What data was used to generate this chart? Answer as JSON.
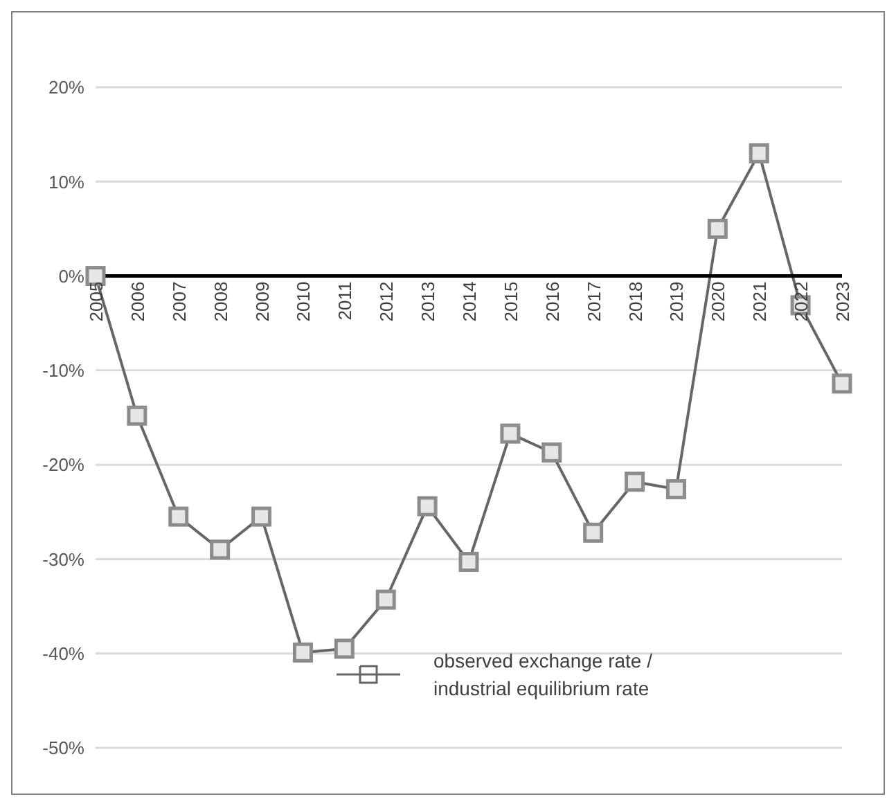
{
  "chart_data": {
    "type": "line",
    "categories": [
      "2005",
      "2006",
      "2007",
      "2008",
      "2009",
      "2010",
      "2011",
      "2012",
      "2013",
      "2014",
      "2015",
      "2016",
      "2017",
      "2018",
      "2019",
      "2020",
      "2021",
      "2022",
      "2023"
    ],
    "series": [
      {
        "name": "observed exchange rate / industrial equilibrium rate",
        "color": "#666666",
        "values": [
          0,
          -14.8,
          -25.5,
          -29.0,
          -25.5,
          -39.9,
          -39.5,
          -34.3,
          -24.4,
          -30.3,
          -16.7,
          -18.7,
          -27.2,
          -21.8,
          -22.6,
          5.0,
          13.0,
          -3.1,
          -11.4
        ]
      }
    ],
    "ylim": [
      -50,
      20
    ],
    "yticks": [
      {
        "value": -50,
        "label": "-50%"
      },
      {
        "value": -40,
        "label": "-40%"
      },
      {
        "value": -30,
        "label": "-30%"
      },
      {
        "value": -20,
        "label": "-20%"
      },
      {
        "value": -10,
        "label": "-10%"
      },
      {
        "value": 0,
        "label": "0%"
      },
      {
        "value": 10,
        "label": "10%"
      },
      {
        "value": 20,
        "label": "20%"
      }
    ],
    "grid": "y",
    "legend": "bottom",
    "marker": "square",
    "line_style": "solid"
  }
}
